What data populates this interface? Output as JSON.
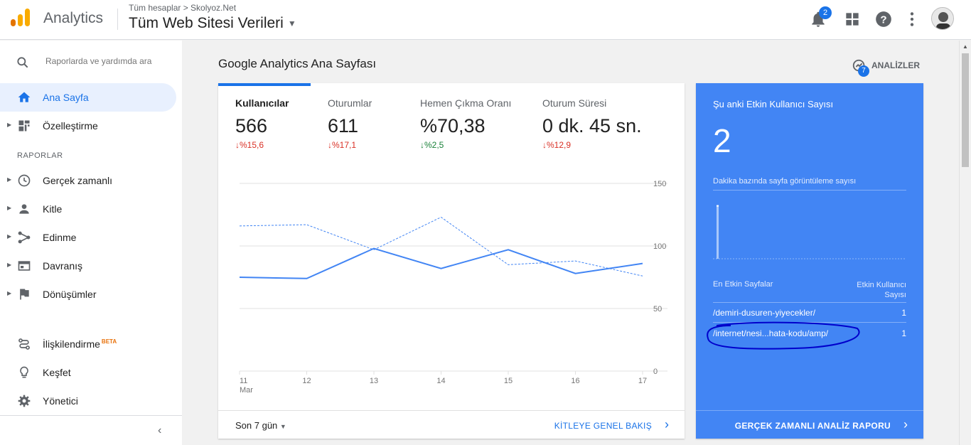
{
  "header": {
    "app_name": "Analytics",
    "breadcrumb": "Tüm hesaplar > Skolyoz.Net",
    "property": "Tüm Web Sitesi Verileri",
    "notifications_count": "2"
  },
  "sidebar": {
    "search_placeholder": "Raporlarda ve yardımda ara",
    "section_label": "RAPORLAR",
    "items": [
      {
        "label": "Ana Sayfa",
        "icon": "home-icon"
      },
      {
        "label": "Özelleştirme",
        "icon": "dashboard-icon"
      },
      {
        "label": "Gerçek zamanlı",
        "icon": "clock-icon"
      },
      {
        "label": "Kitle",
        "icon": "person-icon"
      },
      {
        "label": "Edinme",
        "icon": "acquisition-icon"
      },
      {
        "label": "Davranış",
        "icon": "behavior-icon"
      },
      {
        "label": "Dönüşümler",
        "icon": "flag-icon"
      },
      {
        "label": "İlişkilendirme",
        "icon": "attribution-icon",
        "badge": "BETA"
      },
      {
        "label": "Keşfet",
        "icon": "lightbulb-icon"
      },
      {
        "label": "Yönetici",
        "icon": "gear-icon"
      }
    ]
  },
  "main": {
    "title": "Google Analytics Ana Sayfası",
    "insights_label": "ANALİZLER",
    "insights_count": "7",
    "metrics": [
      {
        "label": "Kullanıcılar",
        "value": "566",
        "change": "%15,6",
        "direction": "down-bad"
      },
      {
        "label": "Oturumlar",
        "value": "611",
        "change": "%17,1",
        "direction": "down-bad"
      },
      {
        "label": "Hemen Çıkma Oranı",
        "value": "%70,38",
        "change": "%2,5",
        "direction": "down-good"
      },
      {
        "label": "Oturum Süresi",
        "value": "0 dk. 45 sn.",
        "change": "%12,9",
        "direction": "down-bad"
      }
    ],
    "range_label": "Son 7 gün",
    "footer_link": "KİTLEYE GENEL BAKIŞ"
  },
  "chart_data": {
    "type": "line",
    "x": [
      "11",
      "12",
      "13",
      "14",
      "15",
      "16",
      "17"
    ],
    "x_sublabel": "Mar",
    "ylim": [
      0,
      150
    ],
    "y_ticks": [
      "150",
      "100",
      "50",
      "0"
    ],
    "series": [
      {
        "values": [
          75,
          74,
          98,
          82,
          97,
          78,
          86
        ],
        "style": "solid"
      },
      {
        "values": [
          116,
          117,
          97,
          123,
          85,
          88,
          76
        ],
        "style": "dashed"
      }
    ],
    "colors": {
      "line": "#4285f4",
      "grid": "#e0e0e0"
    }
  },
  "realtime": {
    "title": "Şu anki Etkin Kullanıcı Sayısı",
    "value": "2",
    "subtitle": "Dakika bazında sayfa görüntüleme sayısı",
    "bars": [
      0,
      3,
      0,
      0,
      0,
      0,
      0,
      0,
      0,
      0,
      0,
      0,
      0,
      0,
      0,
      0,
      0,
      0,
      0,
      0,
      0,
      0,
      0,
      0,
      0,
      0,
      0,
      0,
      0,
      0,
      0,
      0,
      0,
      0,
      0,
      0,
      0,
      0,
      0,
      0,
      0,
      0,
      0,
      0,
      0,
      0,
      0,
      0,
      0,
      0,
      0,
      0,
      0,
      0,
      0,
      0,
      0,
      0,
      0,
      0
    ],
    "table_header_left": "En Etkin Sayfalar",
    "table_header_right": "Etkin Kullanıcı Sayısı",
    "rows": [
      {
        "path": "/demiri-dusuren-yiyecekler/",
        "count": "1"
      },
      {
        "path": "/internet/nesi...hata-kodu/amp/",
        "count": "1"
      }
    ],
    "footer_link": "GERÇEK ZAMANLI ANALİZ RAPORU",
    "color": "#4285f4"
  }
}
